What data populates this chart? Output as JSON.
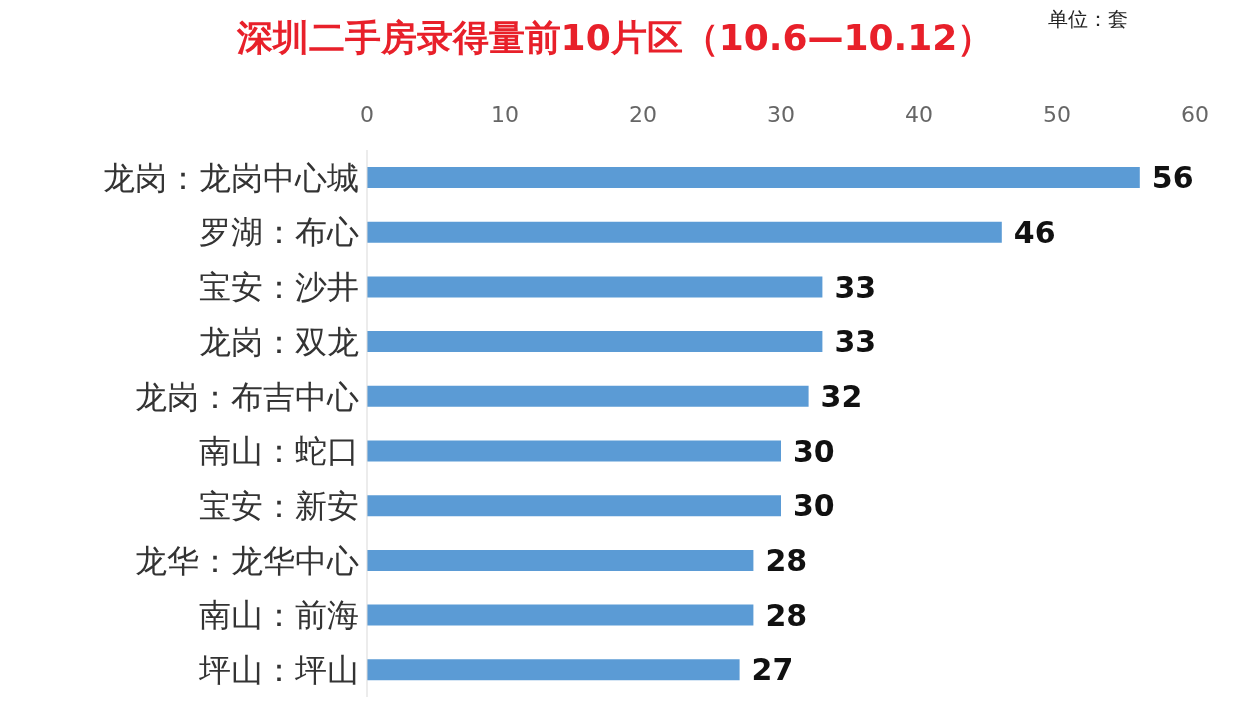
{
  "chart_data": {
    "type": "bar",
    "orientation": "horizontal",
    "title": "深圳二手房录得量前10片区（10.6—10.12）",
    "annotations": [
      "单位：套"
    ],
    "categories": [
      "龙岗：龙岗中心城",
      "罗湖：布心",
      "宝安：沙井",
      "龙岗：双龙",
      "龙岗：布吉中心",
      "南山：蛇口",
      "宝安：新安",
      "龙华：龙华中心",
      "南山：前海",
      "坪山：坪山"
    ],
    "values": [
      56,
      46,
      33,
      33,
      32,
      30,
      30,
      28,
      28,
      27
    ],
    "color": "#5b9bd5",
    "xlim": [
      0,
      60
    ],
    "xticks": [
      0,
      10,
      20,
      30,
      40,
      50,
      60
    ],
    "data_labels": true
  }
}
